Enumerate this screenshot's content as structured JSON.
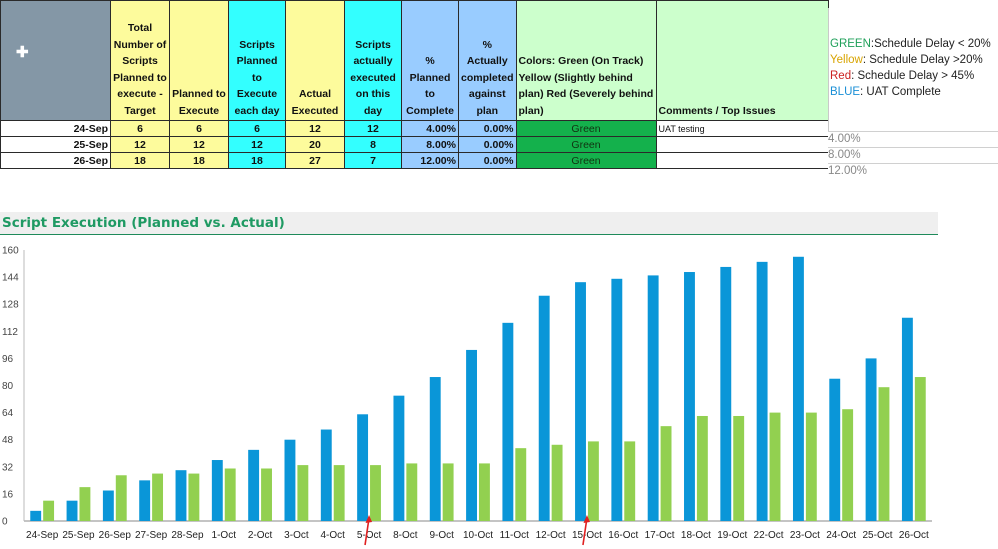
{
  "table": {
    "headers": [
      "",
      "Total Number of Scripts Planned to execute - Target",
      "Planned to Execute",
      "Scripts Planned to Execute each day",
      "Actual Executed",
      "Scripts actually executed on this day",
      "% Planned to Complete",
      "% Actually completed against plan",
      "Colors: Green (On Track) Yellow (Slightly behind plan) Red (Severely behind plan)",
      "Comments / Top Issues"
    ],
    "rows": [
      {
        "date": "24-Sep",
        "target": "6",
        "planned": "6",
        "planned_day": "6",
        "actual": "12",
        "actual_day": "12",
        "pct_planned": "4.00%",
        "pct_actual": "0.00%",
        "status": "Green",
        "comment": "UAT testing",
        "pct_extra": "4.00%"
      },
      {
        "date": "25-Sep",
        "target": "12",
        "planned": "12",
        "planned_day": "12",
        "actual": "20",
        "actual_day": "8",
        "pct_planned": "8.00%",
        "pct_actual": "0.00%",
        "status": "Green",
        "comment": "",
        "pct_extra": "8.00%"
      },
      {
        "date": "26-Sep",
        "target": "18",
        "planned": "18",
        "planned_day": "18",
        "actual": "27",
        "actual_day": "7",
        "pct_planned": "12.00%",
        "pct_actual": "0.00%",
        "status": "Green",
        "comment": "",
        "pct_extra": "12.00%"
      }
    ]
  },
  "legend_note": [
    {
      "key": "GREEN",
      "text": ":Schedule Delay < 20%",
      "color": "#1fa05a"
    },
    {
      "key": "Yellow",
      "text": ":  Schedule Delay >20%",
      "color": "#d8a400"
    },
    {
      "key": "Red",
      "text": ": Schedule Delay > 45%",
      "color": "#cc2222"
    },
    {
      "key": "BLUE",
      "text": ":  UAT Complete",
      "color": "#1a8fd6"
    }
  ],
  "colors": {
    "planned_bar": "#0a96d8",
    "actual_bar": "#92d050",
    "arrow": "#e02020"
  },
  "icons": {
    "cell_cursor": "plus-cursor-icon"
  },
  "chart_data": {
    "type": "bar",
    "title": "Script Execution (Planned vs. Actual)",
    "xlabel": "",
    "ylabel": "",
    "ylim": [
      0,
      160
    ],
    "yticks": [
      0,
      16,
      32,
      48,
      64,
      80,
      96,
      112,
      128,
      144,
      160
    ],
    "grid": false,
    "categories": [
      "24-Sep",
      "25-Sep",
      "26-Sep",
      "27-Sep",
      "28-Sep",
      "1-Oct",
      "2-Oct",
      "3-Oct",
      "4-Oct",
      "5-Oct",
      "8-Oct",
      "9-Oct",
      "10-Oct",
      "11-Oct",
      "12-Oct",
      "15-Oct",
      "16-Oct",
      "17-Oct",
      "18-Oct",
      "19-Oct",
      "22-Oct",
      "23-Oct",
      "24-Oct",
      "25-Oct",
      "26-Oct"
    ],
    "series": [
      {
        "values": [
          6,
          12,
          18,
          24,
          30,
          36,
          42,
          48,
          54,
          63,
          74,
          85,
          101,
          117,
          133,
          141,
          143,
          145,
          147,
          150,
          153,
          156,
          84,
          96,
          120
        ]
      },
      {
        "values": [
          12,
          20,
          27,
          28,
          28,
          31,
          31,
          33,
          33,
          33,
          34,
          34,
          34,
          43,
          45,
          47,
          47,
          56,
          62,
          62,
          64,
          64,
          66,
          79,
          85
        ]
      }
    ],
    "annotations": [
      {
        "type": "arrow",
        "category": "5-Oct"
      },
      {
        "type": "arrow",
        "category": "15-Oct"
      }
    ]
  }
}
